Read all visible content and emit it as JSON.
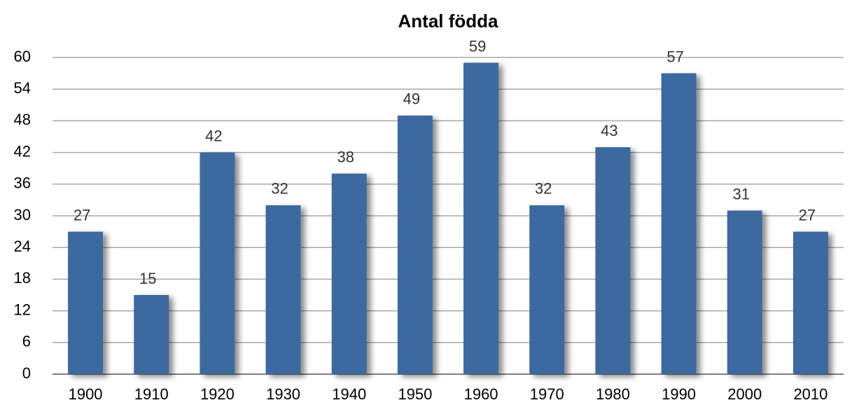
{
  "chart_data": {
    "type": "bar",
    "title": "Antal födda",
    "categories": [
      "1900",
      "1910",
      "1920",
      "1930",
      "1940",
      "1950",
      "1960",
      "1970",
      "1980",
      "1990",
      "2000",
      "2010"
    ],
    "values": [
      27,
      15,
      42,
      32,
      38,
      49,
      59,
      32,
      43,
      57,
      31,
      27
    ],
    "color": "#3d6a9e",
    "ylim": [
      0,
      60
    ],
    "yticks": [
      0,
      6,
      12,
      18,
      24,
      30,
      36,
      42,
      48,
      54,
      60
    ],
    "grid": true
  }
}
